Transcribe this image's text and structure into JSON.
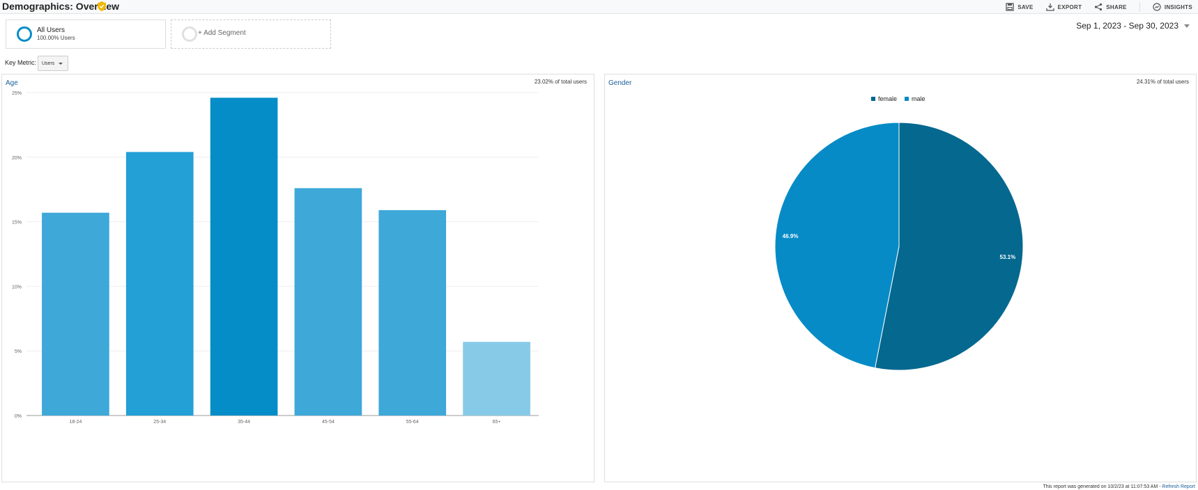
{
  "header": {
    "title": "Demographics: Overview",
    "toolbar": [
      {
        "label": "SAVE",
        "icon": "save-icon"
      },
      {
        "label": "EXPORT",
        "icon": "export-icon"
      },
      {
        "label": "SHARE",
        "icon": "share-icon"
      },
      {
        "label": "INSIGHTS",
        "icon": "insights-icon"
      }
    ]
  },
  "segments": {
    "all_users": {
      "name": "All Users",
      "percent": "100.00% Users"
    },
    "add_label": "+ Add Segment"
  },
  "date_range": "Sep 1, 2023 - Sep 30, 2023",
  "key_metric": {
    "label": "Key Metric:",
    "value": "Users"
  },
  "age_panel": {
    "title": "Age",
    "share": "23.02% of total users"
  },
  "gender_panel": {
    "title": "Gender",
    "share": "24.31% of total users"
  },
  "footer": {
    "note": "This report was generated on 10/2/23 at 11:07:53 AM - ",
    "link": "Refresh Report"
  },
  "colors": {
    "accent": "#058dc7",
    "title_link": "#1a5e9a",
    "female": "#04688f",
    "male": "#078bc6"
  },
  "chart_data": [
    {
      "type": "bar",
      "title": "Age",
      "categories": [
        "18-24",
        "25-34",
        "35-44",
        "45-54",
        "55-64",
        "65+"
      ],
      "values": [
        15.7,
        20.4,
        24.6,
        17.6,
        15.9,
        5.7
      ],
      "colors": [
        "#3ea8d8",
        "#23a0d6",
        "#058dc7",
        "#3ea8d8",
        "#3ea8d8",
        "#87cae8"
      ],
      "ylim": [
        0,
        25
      ],
      "yticks": [
        "0%",
        "5%",
        "10%",
        "15%",
        "20%",
        "25%"
      ],
      "grid": true
    },
    {
      "type": "pie",
      "title": "Gender",
      "legend_position": "top",
      "series": [
        {
          "name": "female",
          "value": 53.1,
          "label": "53.1%",
          "color": "#04688f"
        },
        {
          "name": "male",
          "value": 46.9,
          "label": "46.9%",
          "color": "#078bc6"
        }
      ]
    }
  ]
}
